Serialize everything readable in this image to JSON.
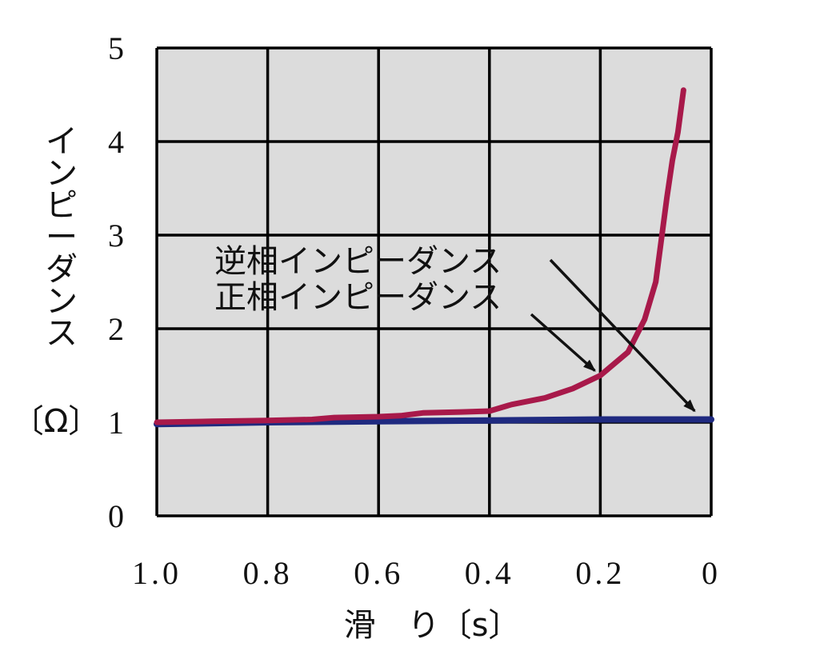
{
  "chart_data": {
    "type": "line",
    "xlabel": "滑　り〔s〕",
    "ylabel": "インピーダンス",
    "ylabel_unit": "〔Ω〕",
    "xlim": [
      1.0,
      0
    ],
    "ylim": [
      0,
      5
    ],
    "x_ticks": [
      "1.0",
      "0.8",
      "0.6",
      "0.4",
      "0.2",
      "0"
    ],
    "x_tick_values": [
      1.0,
      0.8,
      0.6,
      0.4,
      0.2,
      0
    ],
    "y_ticks": [
      "0",
      "1",
      "2",
      "3",
      "4",
      "5"
    ],
    "y_tick_values": [
      0,
      1,
      2,
      3,
      4,
      5
    ],
    "grid": true,
    "plot_background": "#dcdcdc",
    "series": [
      {
        "name": "逆相インピーダンス",
        "color": "#1f2a80",
        "x": [
          1.0,
          0.8,
          0.6,
          0.4,
          0.2,
          0
        ],
        "y": [
          0.98,
          1.0,
          1.01,
          1.02,
          1.03,
          1.03
        ]
      },
      {
        "name": "正相インピーダンス",
        "color": "#a8194a",
        "x": [
          1.0,
          0.9,
          0.8,
          0.72,
          0.68,
          0.6,
          0.56,
          0.52,
          0.45,
          0.4,
          0.36,
          0.3,
          0.25,
          0.2,
          0.15,
          0.12,
          0.1,
          0.08,
          0.07,
          0.06,
          0.05
        ],
        "y": [
          1.0,
          1.01,
          1.02,
          1.03,
          1.05,
          1.06,
          1.07,
          1.1,
          1.11,
          1.12,
          1.19,
          1.26,
          1.36,
          1.5,
          1.75,
          2.1,
          2.5,
          3.4,
          3.8,
          4.1,
          4.55
        ]
      }
    ],
    "annotations": [
      {
        "text": "逆相インピーダンス",
        "points_to": [
          0.03,
          1.07
        ]
      },
      {
        "text": "正相インピーダンス",
        "points_to": [
          0.21,
          1.5
        ]
      }
    ]
  }
}
